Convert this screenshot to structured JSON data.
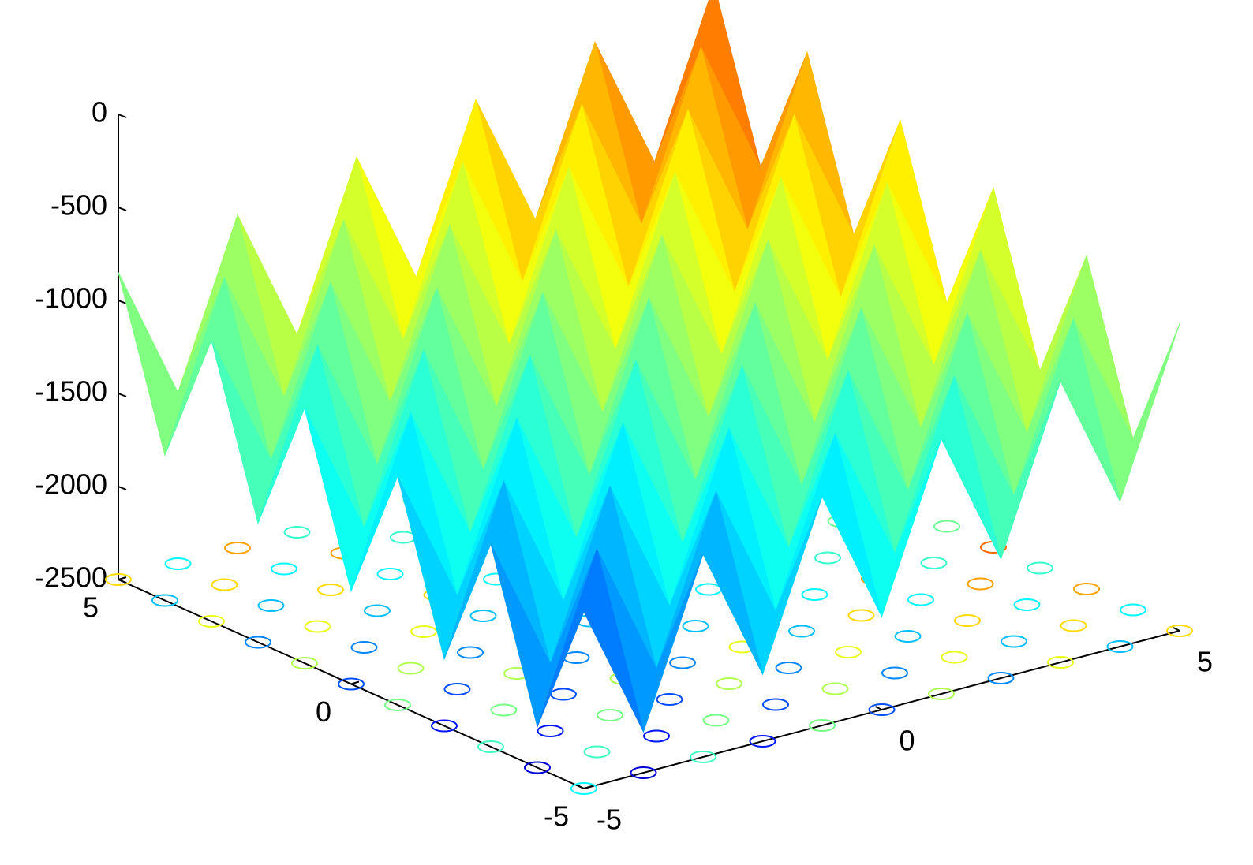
{
  "chart_data": {
    "type": "surface",
    "colormap": "jet",
    "contour": true,
    "x": [
      -5,
      -4,
      -3,
      -2,
      -1,
      0,
      1,
      2,
      3,
      4,
      5
    ],
    "y": [
      -5,
      -4,
      -3,
      -2,
      -1,
      0,
      1,
      2,
      3,
      4,
      5
    ],
    "z": [
      [
        -1550,
        -2280,
        -1410,
        -2140,
        -1270,
        -2000,
        -1130,
        -1860,
        -990,
        -1720,
        -850
      ],
      [
        -2280,
        -1410,
        -2140,
        -1270,
        -2000,
        -1130,
        -1860,
        -990,
        -1720,
        -850,
        -1580
      ],
      [
        -1410,
        -2140,
        -1270,
        -2000,
        -1130,
        -1860,
        -990,
        -1720,
        -850,
        -1580,
        -710
      ],
      [
        -2140,
        -1270,
        -2000,
        -1130,
        -1860,
        -990,
        -1720,
        -850,
        -1580,
        -710,
        -1440
      ],
      [
        -1270,
        -2000,
        -1130,
        -1860,
        -990,
        -1720,
        -850,
        -1580,
        -710,
        -1440,
        -570
      ],
      [
        -2000,
        -1130,
        -1860,
        -990,
        -1720,
        -850,
        -1580,
        -710,
        -1440,
        -570,
        -1300
      ],
      [
        -1130,
        -1860,
        -990,
        -1720,
        -850,
        -1580,
        -710,
        -1440,
        -570,
        -1300,
        -430
      ],
      [
        -1860,
        -990,
        -1720,
        -850,
        -1580,
        -710,
        -1440,
        -570,
        -1300,
        -430,
        -1160
      ],
      [
        -990,
        -1720,
        -850,
        -1580,
        -710,
        -1440,
        -570,
        -1300,
        -430,
        -1160,
        -290
      ],
      [
        -1720,
        -850,
        -1580,
        -710,
        -1440,
        -570,
        -1300,
        -430,
        -1160,
        -290,
        -1020
      ],
      [
        -850,
        -1580,
        -710,
        -1440,
        -570,
        -1300,
        -430,
        -1160,
        -290,
        -1020,
        -150
      ]
    ],
    "xlim": [
      -5,
      5
    ],
    "ylim": [
      -5,
      5
    ],
    "zlim": [
      -2500,
      0
    ],
    "xticks": [
      -5,
      0,
      5
    ],
    "yticks": [
      -5,
      0,
      5
    ],
    "zticks": [
      0,
      -500,
      -1000,
      -1500,
      -2000,
      -2500
    ]
  }
}
